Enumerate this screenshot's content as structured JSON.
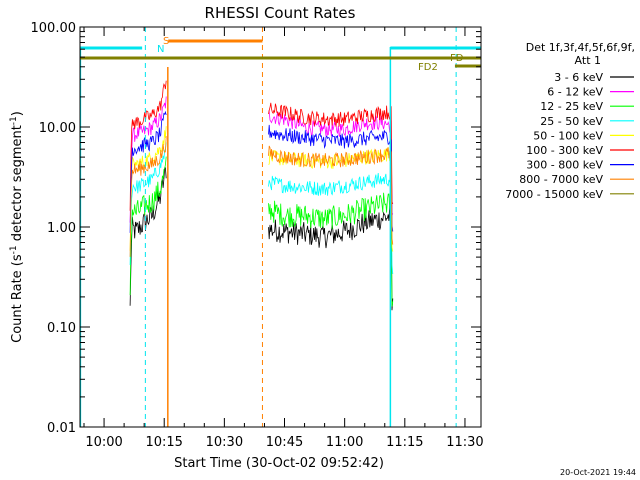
{
  "chart_data": {
    "type": "line",
    "title": "RHESSI Count Rates",
    "xlabel": "Start Time (30-Oct-02 09:52:42)",
    "ylabel_prefix": "Count Rate (s",
    "ylabel_sup": "-1",
    "ylabel_suffix": " detector segment",
    "ylabel_sup2": "-1",
    "ylabel_close": ")",
    "yscale": "log",
    "ylim": [
      0.01,
      100
    ],
    "xlim_min": [
      -6,
      94
    ],
    "x_ticks": [
      {
        "min": 0,
        "label": "10:00"
      },
      {
        "min": 15,
        "label": "10:15"
      },
      {
        "min": 30,
        "label": "10:30"
      },
      {
        "min": 45,
        "label": "10:45"
      },
      {
        "min": 60,
        "label": "11:00"
      },
      {
        "min": 75,
        "label": "11:15"
      },
      {
        "min": 90,
        "label": "11:30"
      }
    ],
    "y_ticks": [
      {
        "v": 100,
        "label": "100.00"
      },
      {
        "v": 10,
        "label": "10.00"
      },
      {
        "v": 1,
        "label": "1.00"
      },
      {
        "v": 0.1,
        "label": "0.10"
      },
      {
        "v": 0.01,
        "label": "0.01"
      }
    ],
    "legend_header": [
      "Det 1f,3f,4f,5f,6f,9f,",
      "Att 1"
    ],
    "series": [
      {
        "name": "3 - 6 keV",
        "color": "#000000",
        "seg1": [
          [
            6.5,
            1.0
          ],
          [
            8,
            0.9
          ],
          [
            10,
            1.1
          ],
          [
            12,
            1.3
          ],
          [
            14,
            2.0
          ],
          [
            15.5,
            3.8
          ]
        ],
        "seg2": [
          [
            41,
            0.95
          ],
          [
            45,
            0.9
          ],
          [
            50,
            0.85
          ],
          [
            55,
            0.8
          ],
          [
            60,
            0.9
          ],
          [
            65,
            1.1
          ],
          [
            70,
            1.25
          ],
          [
            72,
            1.3
          ]
        ]
      },
      {
        "name": "6 - 12 keV",
        "color": "#ff00ff",
        "seg1": [
          [
            6.5,
            8
          ],
          [
            8,
            8.5
          ],
          [
            10,
            9
          ],
          [
            12,
            10
          ],
          [
            14,
            12
          ],
          [
            15.5,
            18
          ]
        ],
        "seg2": [
          [
            41,
            13
          ],
          [
            45,
            12
          ],
          [
            50,
            10
          ],
          [
            55,
            9.5
          ],
          [
            60,
            9.5
          ],
          [
            65,
            11
          ],
          [
            70,
            11
          ],
          [
            72,
            10
          ]
        ]
      },
      {
        "name": "12 - 25 keV",
        "color": "#00ff00",
        "seg1": [
          [
            6.5,
            1.5
          ],
          [
            8,
            1.4
          ],
          [
            10,
            1.6
          ],
          [
            12,
            1.8
          ],
          [
            14,
            2.4
          ],
          [
            15.5,
            4
          ]
        ],
        "seg2": [
          [
            41,
            1.5
          ],
          [
            45,
            1.3
          ],
          [
            50,
            1.3
          ],
          [
            55,
            1.2
          ],
          [
            60,
            1.3
          ],
          [
            65,
            1.5
          ],
          [
            70,
            1.7
          ],
          [
            72,
            1.7
          ]
        ]
      },
      {
        "name": "25 - 50 keV",
        "color": "#00ffff",
        "seg1": [
          [
            6.5,
            2.7
          ],
          [
            8,
            2.5
          ],
          [
            10,
            2.7
          ],
          [
            12,
            3
          ],
          [
            14,
            4
          ],
          [
            15.5,
            6
          ]
        ],
        "seg2": [
          [
            41,
            2.8
          ],
          [
            45,
            2.6
          ],
          [
            50,
            2.5
          ],
          [
            55,
            2.4
          ],
          [
            60,
            2.6
          ],
          [
            65,
            2.8
          ],
          [
            70,
            3
          ],
          [
            72,
            3
          ]
        ]
      },
      {
        "name": "50 - 100 keV",
        "color": "#ffff00",
        "seg1": [
          [
            6.5,
            4.3
          ],
          [
            8,
            4.2
          ],
          [
            10,
            4.5
          ],
          [
            12,
            5
          ],
          [
            14,
            6
          ],
          [
            15.5,
            9
          ]
        ],
        "seg2": [
          [
            41,
            5
          ],
          [
            45,
            4.8
          ],
          [
            50,
            4.6
          ],
          [
            55,
            4.5
          ],
          [
            60,
            4.6
          ],
          [
            65,
            5
          ],
          [
            70,
            5.3
          ],
          [
            72,
            5.5
          ]
        ]
      },
      {
        "name": "100 - 300 keV",
        "color": "#ff0000",
        "seg1": [
          [
            6.5,
            11
          ],
          [
            8,
            11
          ],
          [
            10,
            12
          ],
          [
            12,
            13
          ],
          [
            14,
            16
          ],
          [
            15.5,
            30
          ]
        ],
        "seg2": [
          [
            41,
            15
          ],
          [
            45,
            14
          ],
          [
            50,
            12.5
          ],
          [
            55,
            12
          ],
          [
            60,
            12
          ],
          [
            65,
            13
          ],
          [
            70,
            14
          ],
          [
            72,
            14
          ]
        ]
      },
      {
        "name": "300 - 800 keV",
        "color": "#0000ff",
        "seg1": [
          [
            6.5,
            6
          ],
          [
            8,
            6.2
          ],
          [
            10,
            6.6
          ],
          [
            12,
            7
          ],
          [
            14,
            8.5
          ],
          [
            15.5,
            14
          ]
        ],
        "seg2": [
          [
            41,
            9
          ],
          [
            45,
            8.3
          ],
          [
            50,
            7.8
          ],
          [
            55,
            7.4
          ],
          [
            60,
            7.2
          ],
          [
            65,
            7.6
          ],
          [
            70,
            8
          ],
          [
            72,
            8
          ]
        ]
      },
      {
        "name": "800 - 7000 keV",
        "color": "#ff8000",
        "seg1": [
          [
            6.5,
            3.8
          ],
          [
            8,
            3.7
          ],
          [
            10,
            4
          ],
          [
            12,
            4.2
          ],
          [
            14,
            5
          ],
          [
            15.5,
            7
          ]
        ],
        "seg2": [
          [
            41,
            5.5
          ],
          [
            45,
            5
          ],
          [
            50,
            4.7
          ],
          [
            55,
            4.6
          ],
          [
            60,
            4.7
          ],
          [
            65,
            5
          ],
          [
            70,
            5.3
          ],
          [
            72,
            5.5
          ]
        ]
      },
      {
        "name": "7000 - 15000 keV",
        "color": "#808000",
        "seg1": [],
        "seg2": []
      }
    ],
    "annotations": {
      "S": "S",
      "N": "N",
      "FD": "FD",
      "FD2": "FD2"
    }
  },
  "timestamp": "20-Oct-2021 19:44"
}
